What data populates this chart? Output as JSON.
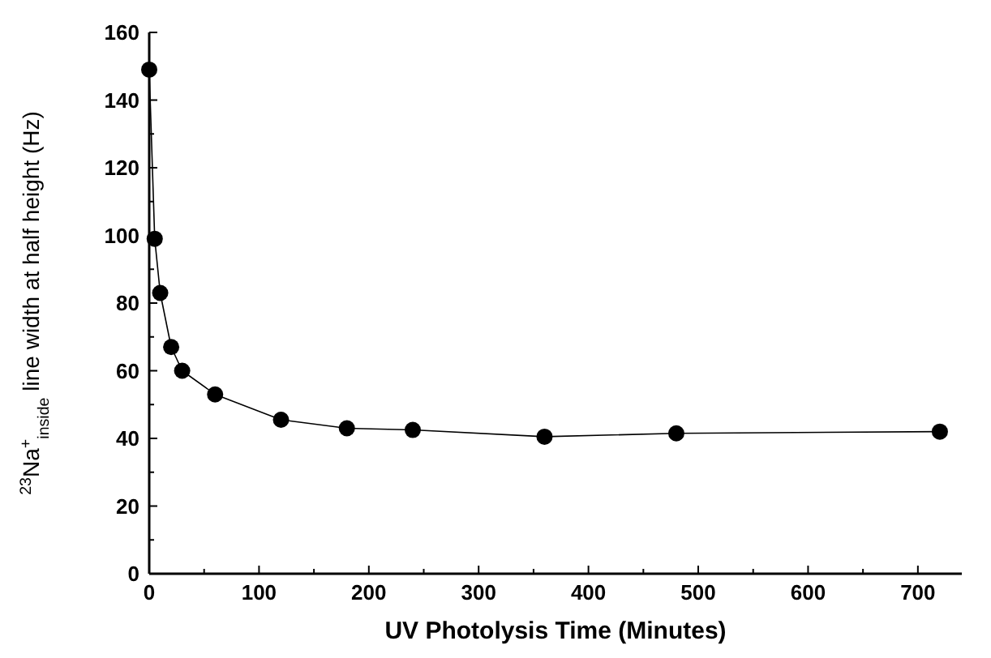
{
  "chart_data": {
    "type": "line",
    "xlabel": "UV Photolysis Time (Minutes)",
    "ylabel": "$^{23}$Na$^{+}$$_{inside}$ line width at half height (Hz)",
    "x": [
      0,
      5,
      10,
      20,
      30,
      60,
      120,
      180,
      240,
      360,
      480,
      720
    ],
    "series": [
      {
        "color": "#000000",
        "values": [
          149,
          99,
          83,
          67,
          60,
          53,
          45.5,
          43,
          42.5,
          40.5,
          41.5,
          42
        ]
      }
    ],
    "xlim": [
      0,
      740
    ],
    "xticks": [
      0,
      {
        "value": 50,
        "label": null
      },
      100,
      {
        "value": 150,
        "label": null
      },
      200,
      {
        "value": 250,
        "label": null
      },
      300,
      {
        "value": 350,
        "label": null
      },
      400,
      {
        "value": 450,
        "label": null
      },
      500,
      {
        "value": 550,
        "label": null
      },
      600,
      {
        "value": 650,
        "label": null
      },
      700
    ],
    "ylim": [
      0,
      160
    ],
    "yticks": [
      0,
      {
        "value": 10,
        "label": null
      },
      20,
      {
        "value": 30,
        "label": null
      },
      40,
      {
        "value": 50,
        "label": null
      },
      60,
      {
        "value": 70,
        "label": null
      },
      80,
      {
        "value": 90,
        "label": null
      },
      100,
      {
        "value": 110,
        "label": null
      },
      120,
      {
        "value": 130,
        "label": null
      },
      140,
      {
        "value": 150,
        "label": null
      },
      160
    ],
    "grid": false,
    "marker": "circle",
    "line_style": "solid"
  }
}
